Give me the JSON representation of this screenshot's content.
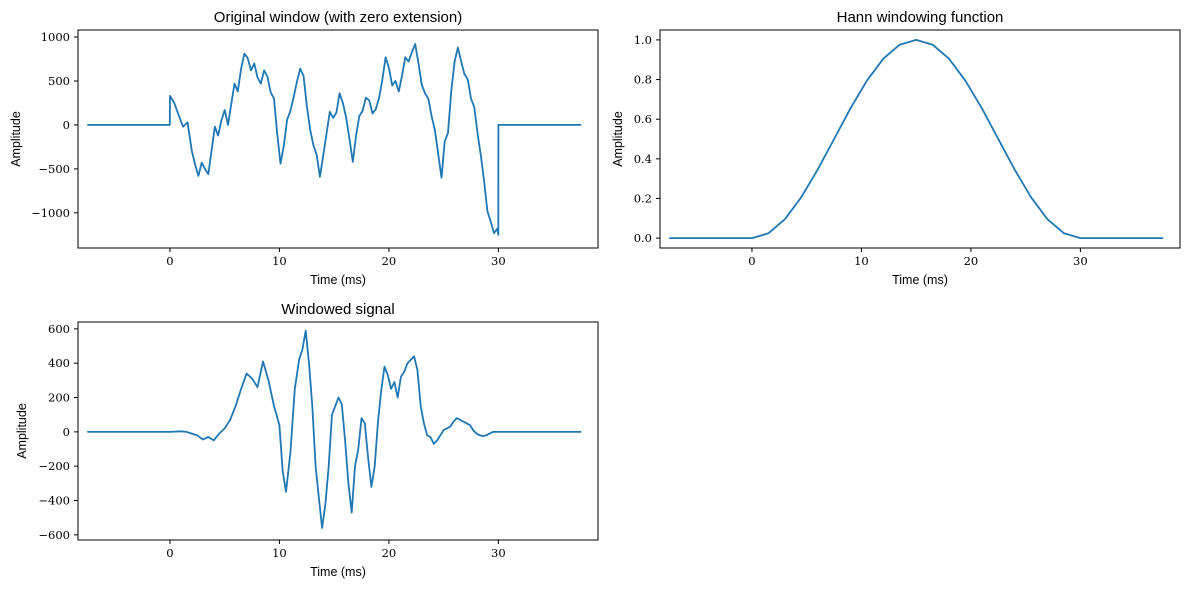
{
  "chart_data": [
    {
      "type": "line",
      "title": "Original window (with zero extension)",
      "xlabel": "Time (ms)",
      "ylabel": "Amplitude",
      "xlim": [
        -8.4,
        39.1
      ],
      "ylim": [
        -1400,
        1080
      ],
      "xticks": [
        0,
        10,
        20,
        30
      ],
      "xtick_labels": [
        "0",
        "10",
        "20",
        "30"
      ],
      "yticks": [
        -1000,
        -500,
        0,
        500,
        1000
      ],
      "ytick_labels": [
        "−1000",
        "−500",
        "0",
        "500",
        "1000"
      ],
      "grid": false,
      "color": "#1f77b4",
      "series": [
        {
          "x": [
            -7.5,
            -0.01,
            0.0,
            0.4,
            0.8,
            1.2,
            1.6,
            2.0,
            2.3,
            2.6,
            2.9,
            3.2,
            3.5,
            3.8,
            4.1,
            4.4,
            4.7,
            5.0,
            5.3,
            5.6,
            5.9,
            6.2,
            6.5,
            6.8,
            7.1,
            7.4,
            7.7,
            8.0,
            8.3,
            8.6,
            8.9,
            9.2,
            9.5,
            9.8,
            10.1,
            10.4,
            10.7,
            11.0,
            11.3,
            11.6,
            11.9,
            12.2,
            12.5,
            12.8,
            13.1,
            13.4,
            13.7,
            14.0,
            14.3,
            14.6,
            14.9,
            15.2,
            15.5,
            15.8,
            16.1,
            16.4,
            16.7,
            17.0,
            17.3,
            17.6,
            17.9,
            18.2,
            18.5,
            18.8,
            19.1,
            19.4,
            19.7,
            20.0,
            20.3,
            20.6,
            20.9,
            21.2,
            21.5,
            21.8,
            22.1,
            22.4,
            22.7,
            23.0,
            23.3,
            23.6,
            23.9,
            24.2,
            24.5,
            24.8,
            25.1,
            25.4,
            25.7,
            26.0,
            26.3,
            26.6,
            26.9,
            27.2,
            27.5,
            27.8,
            28.1,
            28.4,
            28.7,
            29.0,
            29.3,
            29.6,
            29.9,
            29.99,
            30.0,
            37.5
          ],
          "y": [
            0,
            0,
            330,
            250,
            110,
            -20,
            30,
            -300,
            -450,
            -580,
            -430,
            -500,
            -560,
            -290,
            -20,
            -120,
            50,
            170,
            0,
            240,
            470,
            380,
            640,
            810,
            760,
            620,
            700,
            540,
            470,
            620,
            550,
            370,
            300,
            -100,
            -440,
            -240,
            60,
            160,
            320,
            490,
            640,
            560,
            220,
            -50,
            -230,
            -340,
            -590,
            -350,
            -100,
            150,
            80,
            140,
            360,
            250,
            80,
            -160,
            -420,
            -120,
            100,
            160,
            310,
            280,
            130,
            180,
            310,
            510,
            770,
            650,
            450,
            500,
            380,
            560,
            770,
            720,
            830,
            920,
            700,
            460,
            360,
            300,
            100,
            -60,
            -330,
            -600,
            -190,
            -90,
            390,
            720,
            880,
            720,
            580,
            520,
            300,
            200,
            -100,
            -350,
            -640,
            -980,
            -1100,
            -1230,
            -1180,
            -1250,
            0,
            0
          ]
        }
      ]
    },
    {
      "type": "line",
      "title": "Hann windowing function",
      "xlabel": "Time (ms)",
      "ylabel": "Amplitude",
      "xlim": [
        -8.4,
        39.1
      ],
      "ylim": [
        -0.05,
        1.05
      ],
      "xticks": [
        0,
        10,
        20,
        30
      ],
      "xtick_labels": [
        "0",
        "10",
        "20",
        "30"
      ],
      "yticks": [
        0.0,
        0.2,
        0.4,
        0.6,
        0.8,
        1.0
      ],
      "ytick_labels": [
        "0.0",
        "0.2",
        "0.4",
        "0.6",
        "0.8",
        "1.0"
      ],
      "grid": false,
      "color": "#1f77b4",
      "series": [
        {
          "x": [
            -7.5,
            0,
            1.5,
            3,
            4.5,
            6,
            7.5,
            9,
            10.5,
            12,
            13.5,
            15,
            16.5,
            18,
            19.5,
            21,
            22.5,
            24,
            25.5,
            27,
            28.5,
            30,
            37.5
          ],
          "y": [
            0,
            0,
            0.024,
            0.095,
            0.206,
            0.345,
            0.5,
            0.655,
            0.794,
            0.905,
            0.976,
            1.0,
            0.976,
            0.905,
            0.794,
            0.655,
            0.5,
            0.345,
            0.206,
            0.095,
            0.024,
            0,
            0
          ]
        }
      ]
    },
    {
      "type": "line",
      "title": "Windowed signal",
      "xlabel": "Time (ms)",
      "ylabel": "Amplitude",
      "xlim": [
        -8.4,
        39.1
      ],
      "ylim": [
        -630,
        640
      ],
      "xticks": [
        0,
        10,
        20,
        30
      ],
      "xtick_labels": [
        "0",
        "10",
        "20",
        "30"
      ],
      "yticks": [
        -600,
        -400,
        -200,
        0,
        200,
        400,
        600
      ],
      "ytick_labels": [
        "−600",
        "−400",
        "−200",
        "0",
        "200",
        "400",
        "600"
      ],
      "grid": false,
      "color": "#1f77b4",
      "series": [
        {
          "x": [
            -7.5,
            0,
            1.0,
            1.5,
            2.0,
            2.5,
            3.0,
            3.5,
            4.0,
            4.5,
            5.0,
            5.5,
            6.0,
            6.5,
            7.0,
            7.5,
            8.0,
            8.5,
            9.0,
            9.5,
            10.0,
            10.3,
            10.6,
            11.0,
            11.4,
            11.8,
            12.1,
            12.4,
            12.7,
            13.0,
            13.3,
            13.6,
            13.9,
            14.2,
            14.5,
            14.8,
            15.1,
            15.4,
            15.7,
            16.0,
            16.3,
            16.6,
            16.9,
            17.2,
            17.5,
            17.8,
            18.1,
            18.4,
            18.7,
            19.0,
            19.3,
            19.6,
            19.9,
            20.2,
            20.5,
            20.8,
            21.1,
            21.4,
            21.7,
            22.0,
            22.3,
            22.6,
            22.9,
            23.2,
            23.5,
            23.8,
            24.1,
            24.4,
            24.7,
            25.0,
            25.3,
            25.6,
            25.9,
            26.2,
            26.5,
            26.8,
            27.1,
            27.4,
            27.7,
            28.0,
            28.3,
            28.6,
            28.9,
            29.2,
            29.5,
            30.0,
            37.5
          ],
          "y": [
            0,
            0,
            3,
            0,
            -10,
            -20,
            -45,
            -30,
            -50,
            -10,
            20,
            70,
            150,
            250,
            340,
            310,
            260,
            410,
            300,
            150,
            40,
            -230,
            -350,
            -120,
            250,
            420,
            480,
            590,
            400,
            150,
            -200,
            -380,
            -560,
            -420,
            -200,
            100,
            150,
            200,
            160,
            -50,
            -300,
            -470,
            -200,
            -100,
            80,
            50,
            -150,
            -320,
            -200,
            60,
            240,
            380,
            330,
            250,
            290,
            200,
            320,
            350,
            400,
            420,
            440,
            360,
            150,
            50,
            -20,
            -30,
            -70,
            -50,
            -20,
            10,
            20,
            30,
            60,
            80,
            70,
            60,
            50,
            40,
            10,
            -10,
            -20,
            -25,
            -20,
            -10,
            0,
            0,
            0
          ]
        }
      ]
    }
  ]
}
